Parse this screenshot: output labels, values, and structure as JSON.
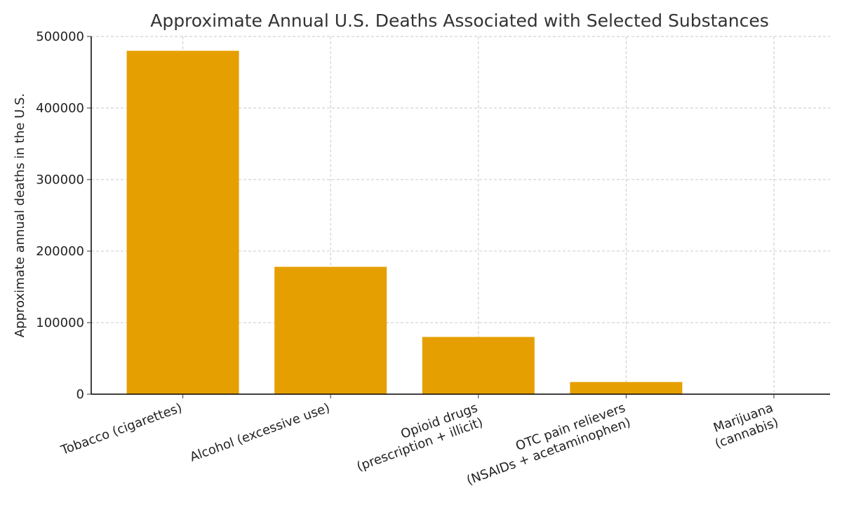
{
  "chart_data": {
    "type": "bar",
    "title": "Approximate Annual U.S. Deaths Associated with Selected Substances",
    "xlabel": "",
    "ylabel": "Approximate annual deaths in the U.S.",
    "categories": [
      [
        "Tobacco (cigarettes)"
      ],
      [
        "Alcohol (excessive use)"
      ],
      [
        "Opioid drugs",
        "(prescription + illicit)"
      ],
      [
        "OTC pain relievers",
        "(NSAIDs + acetaminophen)"
      ],
      [
        "Marijuana",
        "(cannabis)"
      ]
    ],
    "values": [
      480000,
      178000,
      80000,
      17000,
      0
    ],
    "ylim": [
      0,
      500000
    ],
    "yticks": [
      0,
      100000,
      200000,
      300000,
      400000,
      500000
    ],
    "grid": true,
    "bar_color": "#E69F00"
  }
}
